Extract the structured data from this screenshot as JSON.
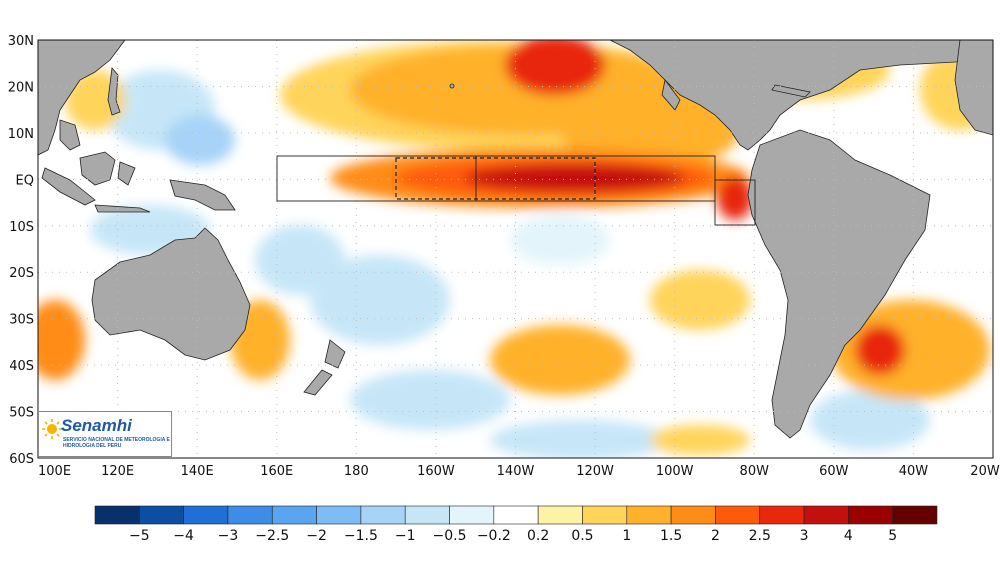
{
  "map": {
    "y_ticks": [
      "30N",
      "20N",
      "10N",
      "EQ",
      "10S",
      "20S",
      "30S",
      "40S",
      "50S",
      "60S"
    ],
    "x_ticks": [
      "100E",
      "120E",
      "140E",
      "160E",
      "180",
      "160W",
      "140W",
      "120W",
      "100W",
      "80W",
      "60W",
      "40W",
      "20W"
    ],
    "colors": {
      "land": "#a9a9a9",
      "ocean_neutral": "#ffffff",
      "gridline": "#bdbdbd"
    }
  },
  "colorbar": {
    "labels": [
      "−5",
      "−4",
      "−3",
      "−2.5",
      "−2",
      "−1.5",
      "−1",
      "−0.5",
      "−0.2",
      "0.2",
      "0.5",
      "1",
      "1.5",
      "2",
      "2.5",
      "3",
      "4",
      "5"
    ],
    "colors": [
      "#08306b",
      "#0b4ea2",
      "#1f6fd6",
      "#3c8ce8",
      "#5aa5f0",
      "#7ebcf5",
      "#a6d3f7",
      "#c6e6f8",
      "#e3f4fb",
      "#ffffff",
      "#fff3a6",
      "#ffd45a",
      "#ffb12b",
      "#ff8c14",
      "#ff5a0a",
      "#e8280a",
      "#c40f0f",
      "#9a0000",
      "#640000"
    ]
  },
  "logo": {
    "name": "Senamhi",
    "subtitle": "SERVICIO NACIONAL DE METEOROLOGIA E HIDROLOGIA DEL PERU"
  }
}
